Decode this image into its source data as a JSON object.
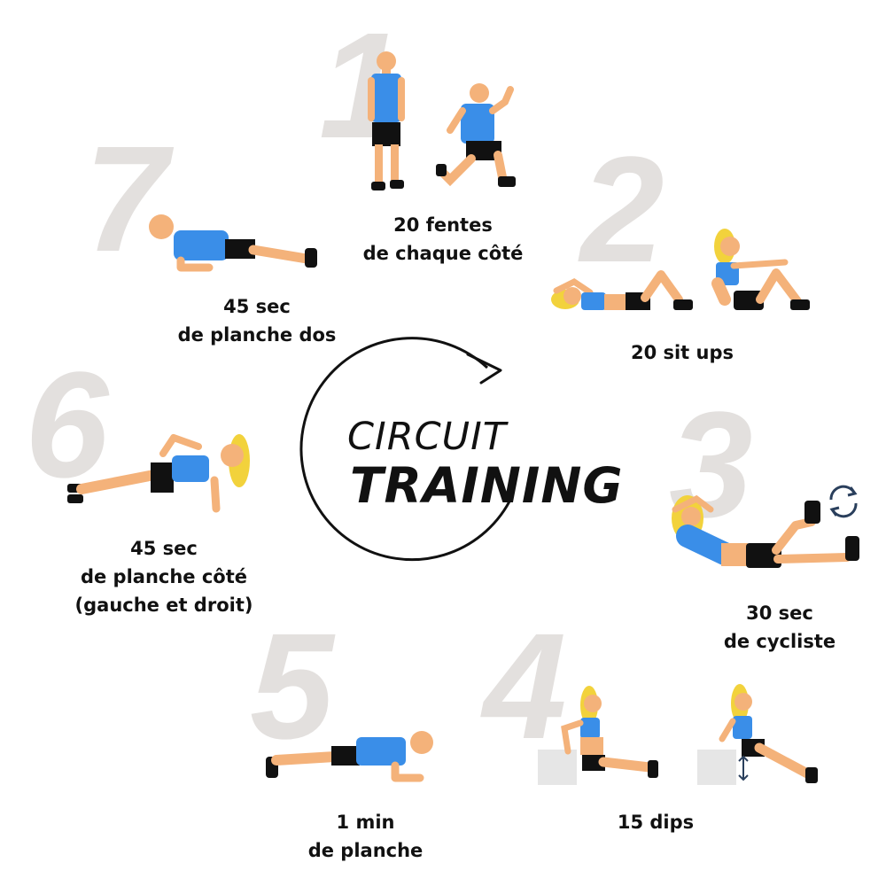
{
  "title": {
    "line1": "CIRCUIT",
    "line2": "TRAINING"
  },
  "palette": {
    "skin": "#f4b27a",
    "shirt": "#3a8ee8",
    "shorts": "#111111",
    "hair": "#f2d23c",
    "number": "#e3e0de",
    "box": "#e6e6e6"
  },
  "exercises": [
    {
      "number": "1",
      "lines": [
        "20 fentes",
        "de chaque côté"
      ]
    },
    {
      "number": "2",
      "lines": [
        "20 sit ups"
      ]
    },
    {
      "number": "3",
      "lines": [
        "30 sec",
        "de cycliste"
      ]
    },
    {
      "number": "4",
      "lines": [
        "15 dips"
      ]
    },
    {
      "number": "5",
      "lines": [
        "1 min",
        "de planche"
      ]
    },
    {
      "number": "6",
      "lines": [
        "45 sec",
        "de planche côté",
        "(gauche et droit)"
      ]
    },
    {
      "number": "7",
      "lines": [
        "45 sec",
        "de planche dos"
      ]
    }
  ],
  "icons": [
    "cycle-arrows-icon",
    "up-down-arrow-icon",
    "circular-arrow-icon"
  ]
}
